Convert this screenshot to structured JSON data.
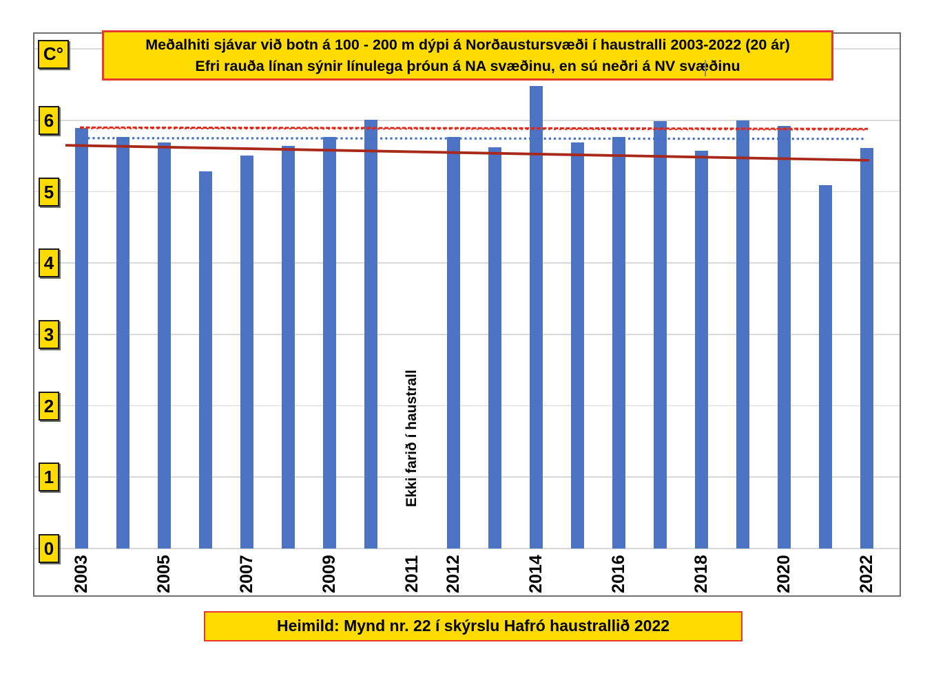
{
  "page": {
    "y_axis_unit_label": "C°",
    "title_line1": "Meðalhiti sjávar við botn á 100 - 200 m dýpi á Norðaustursvæði  í haustralli 2003-2022 (20 ár)",
    "title_line2": "Efri rauða línan sýnir línulega þróun á NA svæðinu, en sú neðri á NV svæðinu",
    "missing_year_note": "Ekki farið í haustrall",
    "caption": "Heimild: Mynd nr. 22 í skýrslu Hafró haustrallið 2022"
  },
  "colors": {
    "bar": "#4c73c4",
    "trend_na_dashed_red": "#dd2a1b",
    "trend_nv_solid_red": "#a8291a",
    "reference_dotted_blue": "#4472c4",
    "label_box_yellow": "#ffdb00",
    "red_box_border": "#e6392b",
    "tick_box_border": "#1a1a1a",
    "gridline": "#d9d9d9",
    "frame_border": "#6e6e6e"
  },
  "chart_data": {
    "type": "bar",
    "title": "Meðalhiti sjávar við botn á 100 - 200 m dýpi á Norðaustursvæði  í haustralli 2003-2022 (20 ár)",
    "subtitle": "Efri rauða línan sýnir línulega þróun á NA svæðinu, en sú neðri á NV svæðinu",
    "ylabel": "C°",
    "xlabel": "",
    "categories": [
      "2003",
      "2004",
      "2005",
      "2006",
      "2007",
      "2008",
      "2009",
      "2010",
      "2011",
      "2012",
      "2013",
      "2014",
      "2015",
      "2016",
      "2017",
      "2018",
      "2019",
      "2020",
      "2021",
      "2022"
    ],
    "values": [
      5.89,
      5.77,
      5.69,
      5.28,
      5.51,
      5.64,
      5.77,
      6.01,
      null,
      5.77,
      5.62,
      6.48,
      5.69,
      5.77,
      5.99,
      5.57,
      6.0,
      5.92,
      5.09,
      5.61
    ],
    "x_tick_labels": [
      "2003",
      "2005",
      "2007",
      "2009",
      "2011",
      "2012",
      "2014",
      "2016",
      "2018",
      "2020",
      "2022"
    ],
    "y_ticks": [
      "0",
      "1",
      "2",
      "3",
      "4",
      "5",
      "6"
    ],
    "ylim": [
      0,
      7.2
    ],
    "grid": "horizontal",
    "legend": "none",
    "missing_data": {
      "year": "2011",
      "note": "Ekki farið í haustrall"
    },
    "reference_lines": [
      {
        "id": "na-trend-upper-red",
        "description": "Efri rauða línan – línuleg þróun á NA svæðinu",
        "style": "dashed",
        "color": "#dd2a1b",
        "value_start": 5.9,
        "value_end": 5.88
      },
      {
        "id": "blue-dotted",
        "description": "Blá punktalína",
        "style": "dotted",
        "color": "#4472c4",
        "value_start": 5.75,
        "value_end": 5.74
      },
      {
        "id": "nv-trend-lower-red",
        "description": "Neðri rauða línan – línuleg þróun á NV svæðinu",
        "style": "solid",
        "color": "#a8291a",
        "value_start": 5.65,
        "value_end": 5.44
      }
    ],
    "source": "Heimild: Mynd nr. 22 í skýrslu Hafró haustrallið 2022"
  }
}
